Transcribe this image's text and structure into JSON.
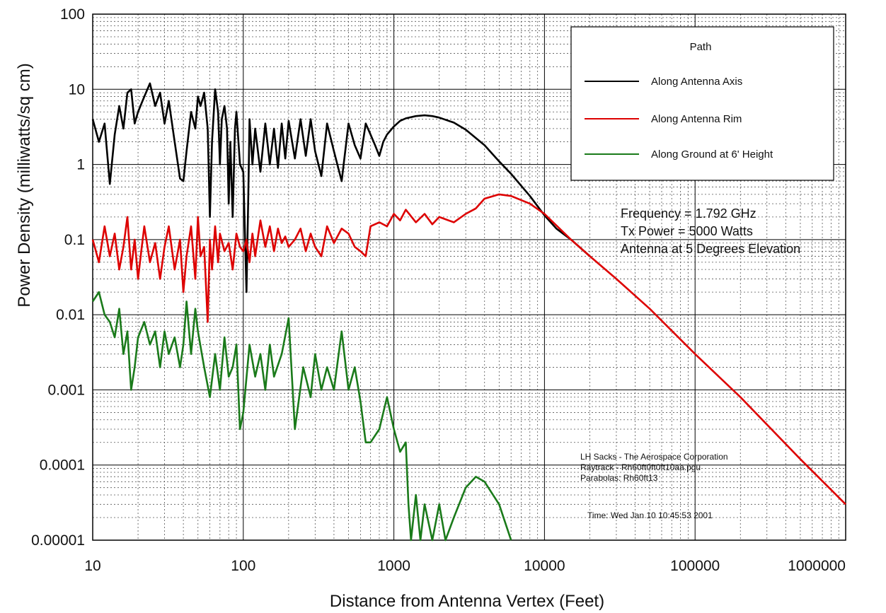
{
  "chart_data": {
    "type": "line",
    "xlabel": "Distance from Antenna Vertex  (Feet)",
    "ylabel": "Power Density (milliwatts/sq cm)",
    "x_scale": "log",
    "y_scale": "log",
    "xlim": [
      10,
      1000000
    ],
    "ylim": [
      1e-05,
      100
    ],
    "x_ticks": [
      "10",
      "100",
      "1000",
      "10000",
      "100000",
      "1000000"
    ],
    "y_ticks": [
      "100",
      "10",
      "1",
      "0.1",
      "0.01",
      "0.001",
      "0.0001",
      "0.00001"
    ],
    "grid": true,
    "legend_title": "Path",
    "legend_position": "top-right",
    "series": [
      {
        "name": "Along Antenna Axis",
        "color": "#000000",
        "x": [
          10,
          11,
          12,
          13,
          14,
          15,
          16,
          17,
          18,
          19,
          20,
          22,
          24,
          26,
          28,
          30,
          32,
          35,
          38,
          40,
          42,
          45,
          48,
          50,
          52,
          55,
          58,
          60,
          62,
          65,
          68,
          70,
          72,
          75,
          78,
          80,
          82,
          85,
          88,
          90,
          95,
          100,
          105,
          108,
          110,
          115,
          120,
          130,
          140,
          150,
          160,
          170,
          180,
          190,
          200,
          220,
          240,
          260,
          280,
          300,
          330,
          360,
          400,
          450,
          500,
          550,
          600,
          650,
          700,
          750,
          800,
          850,
          900,
          1000,
          1100,
          1200,
          1400,
          1600,
          1800,
          2000,
          2500,
          3000,
          4000,
          5000,
          6000,
          8000,
          10000,
          12000,
          15000,
          20000
        ],
        "y": [
          4,
          2,
          3.5,
          0.55,
          2.5,
          6,
          3,
          9,
          10,
          3.5,
          5,
          8,
          12,
          6,
          9,
          3.5,
          7,
          2,
          0.65,
          0.6,
          1.5,
          5,
          3,
          8,
          6,
          9,
          3,
          0.2,
          2,
          10,
          5,
          1,
          4,
          6,
          3,
          0.3,
          2,
          0.2,
          3,
          5,
          1,
          0.8,
          0.02,
          0.4,
          4,
          1,
          3,
          0.8,
          3.5,
          1,
          3,
          0.9,
          3.5,
          1.2,
          3.8,
          1.2,
          4,
          1.3,
          4,
          1.5,
          0.7,
          3.5,
          1.5,
          0.6,
          3.5,
          1.8,
          1.2,
          3.5,
          2.5,
          1.8,
          1.3,
          2,
          2.5,
          3.2,
          3.8,
          4.1,
          4.4,
          4.5,
          4.4,
          4.2,
          3.6,
          2.9,
          1.8,
          1.1,
          0.75,
          0.38,
          0.21,
          0.14,
          0.1,
          0.06
        ]
      },
      {
        "name": "Along Antenna Rim",
        "color": "#dd0000",
        "x": [
          10,
          11,
          12,
          13,
          14,
          15,
          16,
          17,
          18,
          19,
          20,
          21,
          22,
          24,
          26,
          28,
          30,
          32,
          35,
          38,
          40,
          42,
          45,
          48,
          50,
          52,
          55,
          58,
          60,
          62,
          65,
          68,
          70,
          75,
          80,
          85,
          90,
          95,
          100,
          105,
          110,
          115,
          120,
          130,
          140,
          150,
          160,
          170,
          180,
          190,
          200,
          220,
          240,
          260,
          280,
          300,
          330,
          360,
          400,
          450,
          500,
          550,
          600,
          650,
          700,
          800,
          900,
          1000,
          1100,
          1200,
          1400,
          1600,
          1800,
          2000,
          2500,
          3000,
          3500,
          4000,
          5000,
          6000,
          8000,
          10000,
          15000,
          20000,
          30000,
          50000,
          100000,
          200000,
          500000,
          1000000
        ],
        "y": [
          0.1,
          0.05,
          0.15,
          0.06,
          0.12,
          0.04,
          0.08,
          0.2,
          0.04,
          0.1,
          0.03,
          0.07,
          0.15,
          0.05,
          0.09,
          0.03,
          0.08,
          0.15,
          0.04,
          0.1,
          0.02,
          0.06,
          0.15,
          0.03,
          0.2,
          0.06,
          0.08,
          0.008,
          0.1,
          0.04,
          0.15,
          0.05,
          0.12,
          0.07,
          0.09,
          0.04,
          0.12,
          0.08,
          0.07,
          0.1,
          0.05,
          0.12,
          0.06,
          0.18,
          0.08,
          0.15,
          0.07,
          0.14,
          0.09,
          0.11,
          0.08,
          0.1,
          0.14,
          0.07,
          0.12,
          0.08,
          0.06,
          0.15,
          0.09,
          0.14,
          0.12,
          0.08,
          0.07,
          0.06,
          0.15,
          0.17,
          0.15,
          0.22,
          0.18,
          0.25,
          0.17,
          0.22,
          0.16,
          0.2,
          0.17,
          0.22,
          0.26,
          0.35,
          0.4,
          0.38,
          0.3,
          0.22,
          0.1,
          0.06,
          0.03,
          0.012,
          0.003,
          0.0008,
          0.00012,
          3e-05
        ]
      },
      {
        "name": "Along Ground at 6' Height",
        "color": "#1a7a1a",
        "x": [
          10,
          11,
          12,
          13,
          14,
          15,
          16,
          17,
          18,
          19,
          20,
          22,
          24,
          26,
          28,
          30,
          32,
          35,
          38,
          40,
          42,
          45,
          48,
          50,
          55,
          60,
          65,
          70,
          75,
          80,
          85,
          90,
          95,
          100,
          110,
          120,
          130,
          140,
          150,
          160,
          180,
          200,
          220,
          250,
          280,
          300,
          330,
          360,
          400,
          450,
          500,
          550,
          600,
          650,
          700,
          800,
          900,
          1000,
          1100,
          1200,
          1250,
          1300,
          1400,
          1500,
          1600,
          1800,
          2000,
          2200,
          2500,
          3000,
          3500,
          4000,
          5000,
          6000
        ],
        "y": [
          0.015,
          0.02,
          0.01,
          0.008,
          0.005,
          0.012,
          0.003,
          0.006,
          0.001,
          0.002,
          0.005,
          0.008,
          0.004,
          0.006,
          0.002,
          0.006,
          0.003,
          0.005,
          0.002,
          0.004,
          0.015,
          0.003,
          0.012,
          0.006,
          0.002,
          0.0008,
          0.003,
          0.001,
          0.005,
          0.0015,
          0.002,
          0.004,
          0.0003,
          0.0005,
          0.004,
          0.0015,
          0.003,
          0.001,
          0.004,
          0.0015,
          0.003,
          0.009,
          0.0003,
          0.002,
          0.0008,
          0.003,
          0.001,
          0.002,
          0.001,
          0.006,
          0.001,
          0.002,
          0.0007,
          0.0002,
          0.0002,
          0.0003,
          0.0008,
          0.0003,
          0.00015,
          0.0002,
          3e-05,
          1e-05,
          4e-05,
          1e-05,
          3e-05,
          1e-05,
          3e-05,
          1e-05,
          2e-05,
          5e-05,
          7e-05,
          6e-05,
          3e-05,
          1e-05
        ]
      }
    ],
    "annotations": {
      "params": [
        "Frequency = 1.792 GHz",
        "Tx Power = 5000 Watts",
        "Antenna at 5 Degrees Elevation"
      ],
      "footer": [
        "LH Sacks - The Aerospace Corporation",
        "Raytrack - Rh60ft0ft0ft10aa.pgu",
        "Parabolas: Rh60ft13",
        "Time: Wed Jan 10 10:45:53 2001"
      ]
    }
  }
}
